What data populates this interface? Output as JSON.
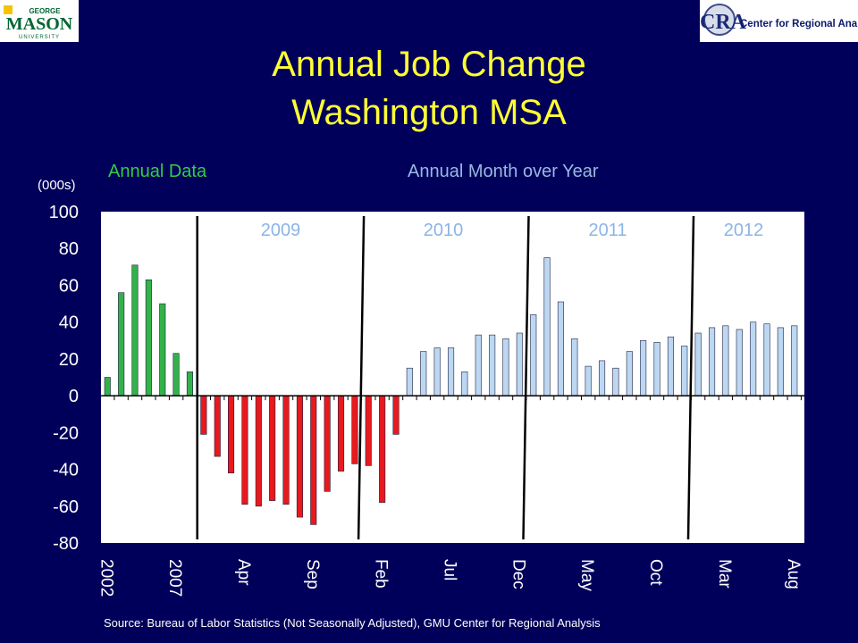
{
  "header": {
    "title_line1": "Annual Job Change",
    "title_line2": "Washington MSA",
    "logo_left": {
      "top": "GEORGE",
      "main": "MASON",
      "bottom": "UNIVERSITY"
    },
    "logo_right": {
      "mark": "CRA",
      "text": "Center for Regional Analysis"
    }
  },
  "source": "Source: Bureau of Labor Statistics (Not Seasonally Adjusted), GMU Center for Regional Analysis",
  "colors": {
    "background": "#00005a",
    "title": "#ffff33",
    "annual": "#33b24a",
    "negative": "#e8191d",
    "positive_monthly": "#bcd7f2",
    "annual_data_label": "#33cc44",
    "monthly_label": "#9ab8e0"
  },
  "chart_data": {
    "type": "bar",
    "ylabel": "(000s)",
    "ylim": [
      -80,
      100
    ],
    "yticks": [
      100,
      80,
      60,
      40,
      20,
      0,
      -20,
      -40,
      -60,
      -80
    ],
    "section_labels": {
      "annual": "Annual Data",
      "monthly": "Annual Month over Year"
    },
    "year_labels": [
      "2009",
      "2010",
      "2011",
      "2012"
    ],
    "x_tick_labels": [
      "2002",
      "2007",
      "Apr",
      "Sep",
      "Feb",
      "Jul",
      "Dec",
      "May",
      "Oct",
      "Mar",
      "Aug"
    ],
    "annual_values": [
      10,
      56,
      71,
      63,
      50,
      23,
      13
    ],
    "monthly_values": [
      -21,
      -33,
      -42,
      -59,
      -60,
      -57,
      -59,
      -66,
      -70,
      -52,
      -41,
      -37,
      -38,
      -58,
      -21,
      15,
      24,
      26,
      26,
      13,
      33,
      33,
      31,
      34,
      44,
      75,
      51,
      31,
      16,
      19,
      15,
      24,
      30,
      29,
      32,
      27,
      34,
      37,
      38,
      36,
      40,
      39,
      37,
      38
    ]
  }
}
